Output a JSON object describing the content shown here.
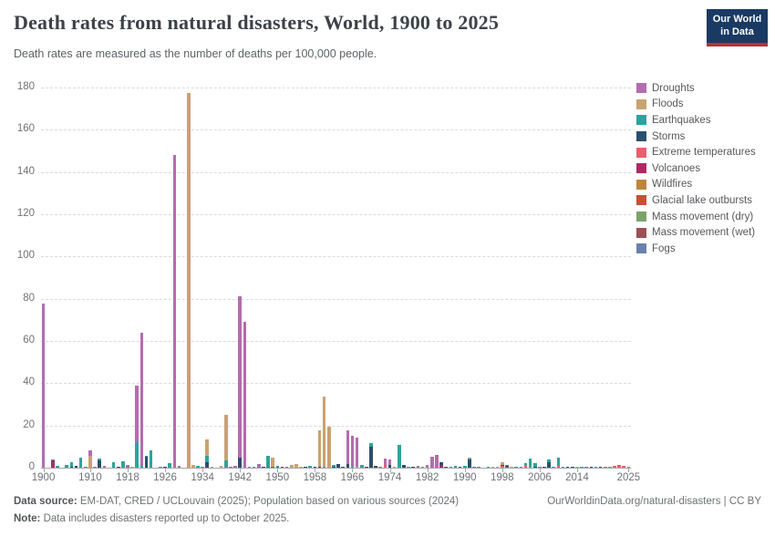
{
  "header": {
    "title": "Death rates from natural disasters, World, 1900 to 2025",
    "subtitle": "Death rates are measured as the number of deaths per 100,000 people."
  },
  "logo": {
    "line1": "Our World",
    "line2": "in Data",
    "bg_color": "#1a3a63",
    "accent_color": "#b1352f"
  },
  "legend": {
    "items": [
      {
        "key": "droughts",
        "label": "Droughts",
        "color": "#b46cb0"
      },
      {
        "key": "floods",
        "label": "Floods",
        "color": "#c9a26f"
      },
      {
        "key": "earthquakes",
        "label": "Earthquakes",
        "color": "#2ba49d"
      },
      {
        "key": "storms",
        "label": "Storms",
        "color": "#2c4e6d"
      },
      {
        "key": "extreme_temperatures",
        "label": "Extreme temperatures",
        "color": "#e8606c"
      },
      {
        "key": "volcanoes",
        "label": "Volcanoes",
        "color": "#ac2b66"
      },
      {
        "key": "wildfires",
        "label": "Wildfires",
        "color": "#bf8540"
      },
      {
        "key": "glacial_lake_outbursts",
        "label": "Glacial lake outbursts",
        "color": "#c35232"
      },
      {
        "key": "mass_movement_dry",
        "label": "Mass movement (dry)",
        "color": "#7aa36c"
      },
      {
        "key": "mass_movement_wet",
        "label": "Mass movement (wet)",
        "color": "#9d4f54"
      },
      {
        "key": "fogs",
        "label": "Fogs",
        "color": "#6b81ac"
      }
    ]
  },
  "footer": {
    "source_bold": "Data source:",
    "source_text": " EM-DAT, CRED / UCLouvain (2025); Population based on various sources (2024)",
    "link_text": "OurWorldinData.org/natural-disasters | CC BY",
    "note_bold": "Note:",
    "note_text": " Data includes disasters reported up to October 2025."
  },
  "chart_data": {
    "type": "bar",
    "stacked": true,
    "title": "Death rates from natural disasters, World, 1900 to 2025",
    "xlabel": "",
    "ylabel": "Deaths per 100,000 people",
    "ylim": [
      0,
      180
    ],
    "yticks": [
      0,
      20,
      40,
      60,
      80,
      100,
      120,
      140,
      160,
      180
    ],
    "x_range": [
      1900,
      2025
    ],
    "xticks": [
      1900,
      1910,
      1918,
      1926,
      1934,
      1942,
      1950,
      1958,
      1966,
      1974,
      1982,
      1990,
      1998,
      2006,
      2014,
      2025
    ],
    "grid": "horizontal dashed",
    "legend_position": "right",
    "stack_order_bottom_to_top": [
      "fogs",
      "mass_movement_wet",
      "mass_movement_dry",
      "glacial_lake_outbursts",
      "wildfires",
      "volcanoes",
      "extreme_temperatures",
      "storms",
      "earthquakes",
      "floods",
      "droughts"
    ],
    "bars": [
      {
        "year": 1900,
        "segments": {
          "droughts": 77.5
        }
      },
      {
        "year": 1902,
        "segments": {
          "volcanoes": 3.5,
          "earthquakes": 0.4
        }
      },
      {
        "year": 1903,
        "segments": {
          "earthquakes": 0.7
        }
      },
      {
        "year": 1905,
        "segments": {
          "earthquakes": 1.5
        }
      },
      {
        "year": 1906,
        "segments": {
          "earthquakes": 2.0,
          "storms": 0.6
        }
      },
      {
        "year": 1907,
        "segments": {
          "storms": 1.0
        }
      },
      {
        "year": 1908,
        "segments": {
          "earthquakes": 4.8
        }
      },
      {
        "year": 1909,
        "segments": {
          "earthquakes": 0.5
        }
      },
      {
        "year": 1910,
        "segments": {
          "floods": 5.5,
          "droughts": 2.8
        }
      },
      {
        "year": 1911,
        "segments": {
          "droughts": 0.6
        }
      },
      {
        "year": 1912,
        "segments": {
          "storms": 3.4,
          "earthquakes": 0.9
        }
      },
      {
        "year": 1913,
        "segments": {
          "droughts": 0.9
        }
      },
      {
        "year": 1915,
        "segments": {
          "earthquakes": 2.6
        }
      },
      {
        "year": 1916,
        "segments": {
          "storms": 0.5
        }
      },
      {
        "year": 1917,
        "segments": {
          "earthquakes": 3.2
        }
      },
      {
        "year": 1918,
        "segments": {
          "droughts": 1.0,
          "earthquakes": 0.4
        }
      },
      {
        "year": 1919,
        "segments": {
          "floods": 0.5
        }
      },
      {
        "year": 1920,
        "segments": {
          "earthquakes": 12.0,
          "droughts": 27.0
        }
      },
      {
        "year": 1921,
        "segments": {
          "earthquakes": 0.8,
          "droughts": 63.0
        }
      },
      {
        "year": 1922,
        "segments": {
          "storms": 5.2,
          "earthquakes": 0.6
        }
      },
      {
        "year": 1923,
        "segments": {
          "earthquakes": 8.2
        }
      },
      {
        "year": 1925,
        "segments": {
          "earthquakes": 0.6
        }
      },
      {
        "year": 1926,
        "segments": {
          "storms": 0.5
        }
      },
      {
        "year": 1927,
        "segments": {
          "earthquakes": 2.0
        }
      },
      {
        "year": 1928,
        "segments": {
          "droughts": 148.0
        }
      },
      {
        "year": 1929,
        "segments": {
          "droughts": 1.0
        }
      },
      {
        "year": 1931,
        "segments": {
          "floods": 177.5
        }
      },
      {
        "year": 1932,
        "segments": {
          "floods": 1.4
        }
      },
      {
        "year": 1933,
        "segments": {
          "earthquakes": 0.8
        }
      },
      {
        "year": 1934,
        "segments": {
          "earthquakes": 0.6
        }
      },
      {
        "year": 1935,
        "segments": {
          "storms": 2.8,
          "earthquakes": 3.0,
          "floods": 7.6
        }
      },
      {
        "year": 1936,
        "segments": {
          "floods": 0.5
        }
      },
      {
        "year": 1938,
        "segments": {
          "floods": 0.8
        }
      },
      {
        "year": 1939,
        "segments": {
          "earthquakes": 3.6,
          "floods": 21.5
        }
      },
      {
        "year": 1940,
        "segments": {
          "earthquakes": 0.5
        }
      },
      {
        "year": 1941,
        "segments": {
          "droughts": 0.8
        }
      },
      {
        "year": 1942,
        "segments": {
          "storms": 4.6,
          "droughts": 76.5
        }
      },
      {
        "year": 1943,
        "segments": {
          "droughts": 69.0
        }
      },
      {
        "year": 1944,
        "segments": {
          "earthquakes": 0.5
        }
      },
      {
        "year": 1945,
        "segments": {
          "earthquakes": 0.6
        }
      },
      {
        "year": 1946,
        "segments": {
          "droughts": 1.4,
          "earthquakes": 0.3
        }
      },
      {
        "year": 1947,
        "segments": {
          "storms": 0.4
        }
      },
      {
        "year": 1948,
        "segments": {
          "mass_movement_wet": 0.5,
          "earthquakes": 5.0
        }
      },
      {
        "year": 1949,
        "segments": {
          "mass_movement_wet": 0.4,
          "floods": 4.2
        }
      },
      {
        "year": 1950,
        "segments": {
          "earthquakes": 0.4,
          "mass_movement_wet": 0.6
        }
      },
      {
        "year": 1951,
        "segments": {
          "volcanoes": 0.3
        }
      },
      {
        "year": 1952,
        "segments": {
          "fogs": 0.5
        }
      },
      {
        "year": 1953,
        "segments": {
          "floods": 1.1
        }
      },
      {
        "year": 1954,
        "segments": {
          "floods": 1.7
        }
      },
      {
        "year": 1955,
        "segments": {
          "floods": 0.4
        }
      },
      {
        "year": 1956,
        "segments": {
          "storms": 0.3
        }
      },
      {
        "year": 1957,
        "segments": {
          "earthquakes": 0.8
        }
      },
      {
        "year": 1958,
        "segments": {
          "storms": 0.4
        }
      },
      {
        "year": 1959,
        "segments": {
          "storms": 0.6,
          "floods": 17.2
        }
      },
      {
        "year": 1960,
        "segments": {
          "earthquakes": 0.5,
          "floods": 33.2
        }
      },
      {
        "year": 1961,
        "segments": {
          "floods": 19.4
        }
      },
      {
        "year": 1962,
        "segments": {
          "storms": 0.4,
          "earthquakes": 0.8
        }
      },
      {
        "year": 1963,
        "segments": {
          "storms": 1.9
        }
      },
      {
        "year": 1964,
        "segments": {
          "storms": 0.4
        }
      },
      {
        "year": 1965,
        "segments": {
          "storms": 1.6,
          "droughts": 15.9
        }
      },
      {
        "year": 1966,
        "segments": {
          "earthquakes": 0.4,
          "droughts": 14.7
        }
      },
      {
        "year": 1967,
        "segments": {
          "floods": 0.4,
          "droughts": 13.8
        }
      },
      {
        "year": 1968,
        "segments": {
          "earthquakes": 1.2
        }
      },
      {
        "year": 1969,
        "segments": {
          "storms": 0.4
        }
      },
      {
        "year": 1970,
        "segments": {
          "storms": 9.8,
          "earthquakes": 1.7
        }
      },
      {
        "year": 1971,
        "segments": {
          "storms": 0.9
        }
      },
      {
        "year": 1972,
        "segments": {
          "earthquakes": 0.5
        }
      },
      {
        "year": 1973,
        "segments": {
          "extreme_temperatures": 1.1,
          "droughts": 3.1
        }
      },
      {
        "year": 1974,
        "segments": {
          "storms": 1.3,
          "droughts": 2.7
        }
      },
      {
        "year": 1975,
        "segments": {
          "floods": 0.6
        }
      },
      {
        "year": 1976,
        "segments": {
          "earthquakes": 10.8
        }
      },
      {
        "year": 1977,
        "segments": {
          "storms": 1.3
        }
      },
      {
        "year": 1978,
        "segments": {
          "earthquakes": 0.6
        }
      },
      {
        "year": 1979,
        "segments": {
          "storms": 0.3
        }
      },
      {
        "year": 1980,
        "segments": {
          "earthquakes": 0.6,
          "droughts": 0.4
        }
      },
      {
        "year": 1981,
        "segments": {
          "droughts": 0.4
        }
      },
      {
        "year": 1982,
        "segments": {
          "droughts": 1.1
        }
      },
      {
        "year": 1983,
        "segments": {
          "droughts": 5.3
        }
      },
      {
        "year": 1984,
        "segments": {
          "droughts": 6.2
        }
      },
      {
        "year": 1985,
        "segments": {
          "volcanoes": 1.4,
          "storms": 1.0
        }
      },
      {
        "year": 1986,
        "segments": {
          "volcanoes": 0.2
        }
      },
      {
        "year": 1987,
        "segments": {
          "earthquakes": 0.4
        }
      },
      {
        "year": 1988,
        "segments": {
          "earthquakes": 1.0
        }
      },
      {
        "year": 1989,
        "segments": {
          "storms": 0.3
        }
      },
      {
        "year": 1990,
        "segments": {
          "earthquakes": 0.9
        }
      },
      {
        "year": 1991,
        "segments": {
          "storms": 3.9,
          "earthquakes": 0.3,
          "floods": 0.6
        }
      },
      {
        "year": 1992,
        "segments": {
          "earthquakes": 0.2
        }
      },
      {
        "year": 1993,
        "segments": {
          "earthquakes": 0.4
        }
      },
      {
        "year": 1995,
        "segments": {
          "earthquakes": 0.3
        }
      },
      {
        "year": 1996,
        "segments": {
          "floods": 0.3
        }
      },
      {
        "year": 1997,
        "segments": {
          "floods": 0.2
        }
      },
      {
        "year": 1998,
        "segments": {
          "extreme_temperatures": 1.1,
          "storms": 0.4,
          "floods": 1.2
        }
      },
      {
        "year": 1999,
        "segments": {
          "mass_movement_wet": 0.4,
          "storms": 0.6,
          "earthquakes": 0.5
        }
      },
      {
        "year": 2000,
        "segments": {
          "floods": 0.2
        }
      },
      {
        "year": 2001,
        "segments": {
          "earthquakes": 0.5
        }
      },
      {
        "year": 2002,
        "segments": {
          "earthquakes": 0.2
        }
      },
      {
        "year": 2003,
        "segments": {
          "extreme_temperatures": 1.5,
          "earthquakes": 0.5
        }
      },
      {
        "year": 2004,
        "segments": {
          "extreme_temperatures": 0.4,
          "earthquakes": 4.1
        }
      },
      {
        "year": 2005,
        "segments": {
          "storms": 0.4,
          "earthquakes": 1.6
        }
      },
      {
        "year": 2006,
        "segments": {
          "earthquakes": 0.5
        }
      },
      {
        "year": 2007,
        "segments": {
          "storms": 0.3
        }
      },
      {
        "year": 2008,
        "segments": {
          "storms": 2.5,
          "earthquakes": 1.5
        }
      },
      {
        "year": 2009,
        "segments": {
          "earthquakes": 0.2
        }
      },
      {
        "year": 2010,
        "segments": {
          "extreme_temperatures": 0.9,
          "earthquakes": 4.0
        }
      },
      {
        "year": 2011,
        "segments": {
          "earthquakes": 0.4
        }
      },
      {
        "year": 2012,
        "segments": {
          "storms": 0.2
        }
      },
      {
        "year": 2013,
        "segments": {
          "storms": 0.3
        }
      },
      {
        "year": 2014,
        "segments": {
          "floods": 0.1
        }
      },
      {
        "year": 2015,
        "segments": {
          "earthquakes": 0.25
        }
      },
      {
        "year": 2016,
        "segments": {
          "earthquakes": 0.1
        }
      },
      {
        "year": 2017,
        "segments": {
          "storms": 0.1
        }
      },
      {
        "year": 2018,
        "segments": {
          "earthquakes": 0.15
        }
      },
      {
        "year": 2019,
        "segments": {
          "storms": 0.1
        }
      },
      {
        "year": 2020,
        "segments": {
          "extreme_temperatures": 0.15
        }
      },
      {
        "year": 2021,
        "segments": {
          "extreme_temperatures": 0.3
        }
      },
      {
        "year": 2022,
        "segments": {
          "extreme_temperatures": 0.9
        }
      },
      {
        "year": 2023,
        "segments": {
          "earthquakes": 0.6,
          "extreme_temperatures": 0.7
        }
      },
      {
        "year": 2024,
        "segments": {
          "extreme_temperatures": 0.8
        }
      },
      {
        "year": 2025,
        "segments": {
          "extreme_temperatures": 0.15
        }
      }
    ]
  }
}
